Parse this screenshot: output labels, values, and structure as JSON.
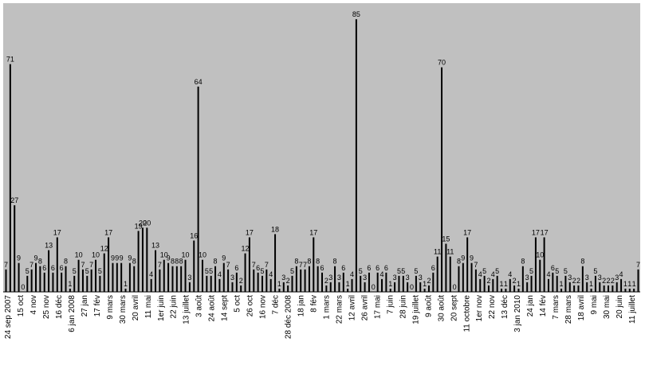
{
  "chart_data": {
    "type": "bar",
    "title": "",
    "xlabel": "",
    "ylabel": "",
    "ylim": [
      0,
      90
    ],
    "grid": false,
    "legend": "none",
    "colors": {
      "plot_bg": "#c0c0c0",
      "bar": "#000000",
      "page_bg": "#ffffff"
    },
    "tick_labels": [
      "24 sep 2007",
      "15 oct",
      "4 nov",
      "25 nov",
      "16 déc",
      "6 jan 2008",
      "27 jan",
      "17 fév",
      "9 mars",
      "30 mars",
      "20 avril",
      "11 mai",
      "1er juin",
      "22 juin",
      "13 juillet",
      "3 août",
      "24 août",
      "14 sept",
      "5 oct",
      "26 oct",
      "16 nov",
      "7 déc",
      "28 déc 2008",
      "18 jan",
      "8 fév",
      "1 mars",
      "22 mars",
      "12 avril",
      "26 avril",
      "17 mai",
      "7 juin",
      "28 juin",
      "19 juillet",
      "9 août",
      "30 août",
      "20 sept",
      "11 octobre",
      "1er nov",
      "22 nov",
      "13 déc",
      "3 jan 2010",
      "24 jan",
      "14 fév",
      "7 mars",
      "28 mars",
      "18 avril",
      "9 mai",
      "30 mai",
      "20 juin",
      "11 juillet"
    ],
    "values": [
      7,
      71,
      27,
      9,
      0,
      5,
      7,
      9,
      8,
      6,
      13,
      6,
      17,
      6,
      8,
      1,
      5,
      10,
      7,
      5,
      7,
      10,
      5,
      12,
      17,
      9,
      9,
      9,
      1,
      9,
      8,
      19,
      20,
      20,
      4,
      13,
      7,
      10,
      9,
      8,
      8,
      8,
      10,
      3,
      16,
      64,
      10,
      5,
      5,
      8,
      4,
      9,
      7,
      3,
      6,
      2,
      12,
      17,
      7,
      6,
      5,
      7,
      4,
      18,
      1,
      3,
      2,
      5,
      8,
      7,
      7,
      8,
      17,
      8,
      6,
      2,
      3,
      8,
      3,
      6,
      1,
      4,
      85,
      5,
      3,
      6,
      0,
      6,
      4,
      6,
      1,
      3,
      5,
      5,
      3,
      0,
      5,
      3,
      1,
      2,
      6,
      11,
      70,
      15,
      11,
      0,
      8,
      9,
      17,
      9,
      7,
      4,
      5,
      2,
      4,
      5,
      1,
      1,
      4,
      2,
      1,
      8,
      3,
      5,
      17,
      10,
      17,
      4,
      6,
      5,
      1,
      5,
      3,
      2,
      2,
      8,
      3,
      1,
      5,
      3,
      2,
      2,
      2,
      3,
      4,
      1,
      1,
      1,
      7
    ]
  }
}
